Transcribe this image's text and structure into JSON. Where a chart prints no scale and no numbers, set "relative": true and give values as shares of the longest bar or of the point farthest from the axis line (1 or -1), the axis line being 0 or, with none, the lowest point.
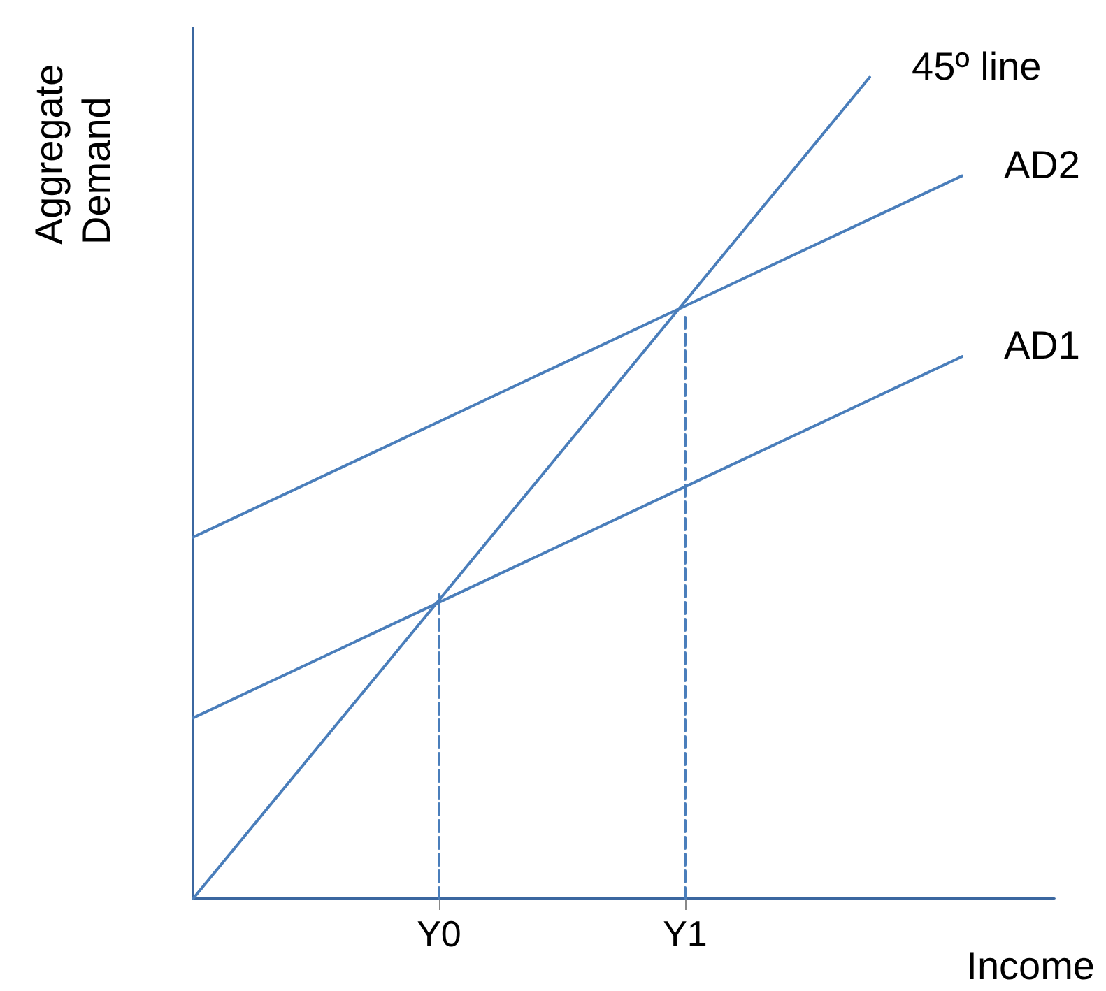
{
  "chart_data": {
    "type": "line",
    "relative": true,
    "xlabel": "Income",
    "ylabel": "Aggregate\nDemand",
    "categories": [
      null,
      null,
      null,
      null,
      null,
      null,
      null,
      null,
      "Y0",
      null,
      null,
      null,
      null,
      null,
      null,
      null,
      "Y1",
      null,
      null,
      null,
      null,
      null,
      null,
      null,
      null,
      null,
      null,
      null,
      null
    ],
    "series": [
      {
        "name": "45º line",
        "color": "#4a7ebb",
        "values": [
          0,
          null,
          null,
          null,
          null,
          null,
          null,
          null,
          null,
          null,
          null,
          null,
          null,
          null,
          null,
          null,
          null,
          null,
          null,
          null,
          null,
          null,
          1,
          null,
          null,
          null,
          null,
          null,
          null
        ]
      },
      {
        "name": "AD2",
        "color": "#4a7ebb",
        "values": [
          0.44,
          null,
          null,
          null,
          null,
          null,
          null,
          null,
          null,
          null,
          null,
          null,
          null,
          null,
          null,
          null,
          null,
          null,
          null,
          null,
          null,
          null,
          null,
          null,
          null,
          0.88,
          null,
          null,
          null
        ]
      },
      {
        "name": "AD1",
        "color": "#4a7ebb",
        "values": [
          0.22,
          null,
          null,
          null,
          null,
          null,
          null,
          null,
          null,
          null,
          null,
          null,
          null,
          null,
          null,
          null,
          null,
          null,
          null,
          null,
          null,
          null,
          null,
          null,
          null,
          0.66,
          null,
          null,
          null
        ]
      },
      {
        "color": "#4a7ebb",
        "x": [
          "Y0",
          "Y0"
        ],
        "values": [
          0,
          0.37
        ],
        "line_style": "dashed"
      },
      {
        "color": "#4a7ebb",
        "x": [
          "Y1",
          "Y1"
        ],
        "values": [
          0,
          0.71
        ],
        "line_style": "dashed"
      }
    ],
    "grid": false,
    "legend": false,
    "marker": "none",
    "line_style": "solid"
  }
}
